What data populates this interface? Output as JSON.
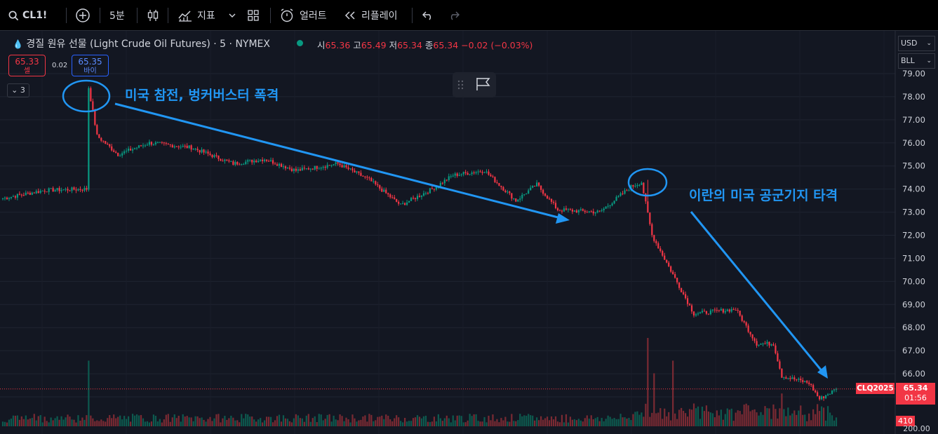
{
  "toolbar": {
    "symbol": "CL1!",
    "interval": "5분",
    "indicators_label": "지표",
    "alert_label": "얼러트",
    "replay_label": "리플레이"
  },
  "legend": {
    "title": "경질 원유 선물 (Light Crude Oil Futures) · 5 · NYMEX",
    "open_key": "시",
    "open": "65.36",
    "high_key": "고",
    "high": "65.49",
    "low_key": "저",
    "low": "65.34",
    "close_key": "종",
    "close": "65.34",
    "change": "−0.02 (−0.03%)"
  },
  "trade": {
    "sell_price": "65.33",
    "sell_label": "셀",
    "spread": "0.02",
    "buy_price": "65.35",
    "buy_label": "바이"
  },
  "collapse_count": "3",
  "units": {
    "currency": "USD",
    "unit": "BLL"
  },
  "annotations": {
    "first": "미국 참전, 벙커버스터 폭격",
    "second": "이란의 미국 공군기지 타격"
  },
  "price_labels": {
    "contract": "CLQ2025",
    "last_price": "65.34",
    "countdown": "01:56",
    "volume": "410",
    "volume_axis": "200.00"
  },
  "colors": {
    "up": "#089981",
    "down": "#f23645",
    "annotation": "#2196f3",
    "bg": "#131722"
  },
  "chart_data": {
    "type": "candlestick",
    "title": "경질 원유 선물 (Light Crude Oil Futures) · 5 · NYMEX",
    "y_ticks": [
      79,
      78,
      77,
      76,
      75,
      74,
      73,
      72,
      71,
      70,
      69,
      68,
      67,
      66,
      65
    ],
    "ylim": [
      64.6,
      79.2
    ],
    "price_path": [
      {
        "i": 0,
        "p": 73.6
      },
      {
        "i": 20,
        "p": 73.95
      },
      {
        "i": 40,
        "p": 74.0
      },
      {
        "i": 41,
        "p": 78.4
      },
      {
        "i": 45,
        "p": 76.3
      },
      {
        "i": 55,
        "p": 75.5
      },
      {
        "i": 70,
        "p": 76.0
      },
      {
        "i": 90,
        "p": 75.8
      },
      {
        "i": 110,
        "p": 75.1
      },
      {
        "i": 125,
        "p": 75.3
      },
      {
        "i": 140,
        "p": 74.8
      },
      {
        "i": 160,
        "p": 75.1
      },
      {
        "i": 175,
        "p": 74.4
      },
      {
        "i": 190,
        "p": 73.3
      },
      {
        "i": 205,
        "p": 74.0
      },
      {
        "i": 215,
        "p": 74.6
      },
      {
        "i": 230,
        "p": 74.8
      },
      {
        "i": 245,
        "p": 73.5
      },
      {
        "i": 255,
        "p": 74.2
      },
      {
        "i": 265,
        "p": 73.1
      },
      {
        "i": 285,
        "p": 73.0
      },
      {
        "i": 300,
        "p": 74.1
      },
      {
        "i": 305,
        "p": 74.3
      },
      {
        "i": 310,
        "p": 72.0
      },
      {
        "i": 320,
        "p": 70.3
      },
      {
        "i": 330,
        "p": 68.6
      },
      {
        "i": 350,
        "p": 68.8
      },
      {
        "i": 360,
        "p": 67.3
      },
      {
        "i": 368,
        "p": 67.3
      },
      {
        "i": 372,
        "p": 65.9
      },
      {
        "i": 385,
        "p": 65.6
      },
      {
        "i": 390,
        "p": 64.9
      },
      {
        "i": 398,
        "p": 65.34
      }
    ],
    "volume_spikes": [
      {
        "i": 41,
        "v": 2600
      },
      {
        "i": 308,
        "v": 3500
      },
      {
        "i": 311,
        "v": 2100
      },
      {
        "i": 320,
        "v": 2600
      },
      {
        "i": 372,
        "v": 1300
      }
    ],
    "last": {
      "price": 65.34,
      "volume": 410
    }
  }
}
